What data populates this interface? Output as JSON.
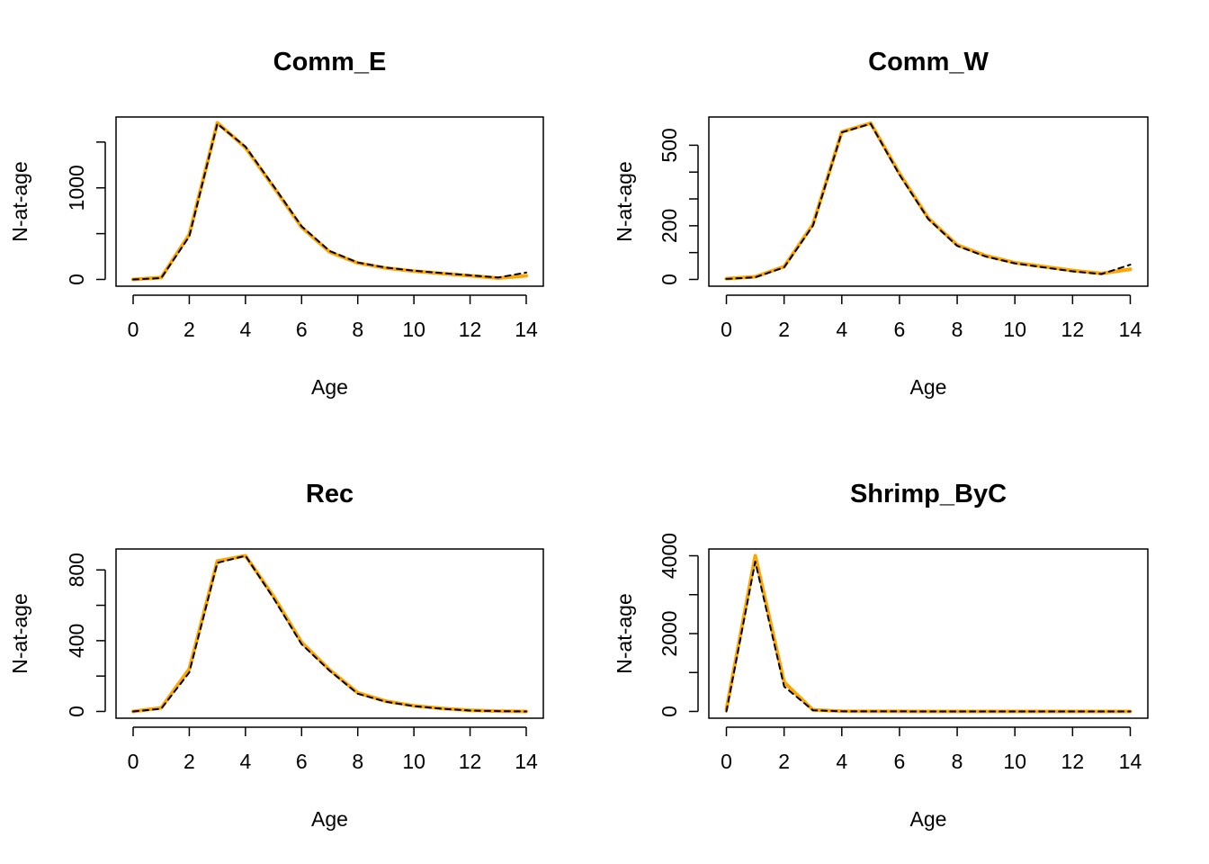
{
  "chart_data": [
    {
      "type": "line",
      "title": "Comm_E",
      "xlabel": "Age",
      "ylabel": "N-at-age",
      "x": [
        0,
        1,
        2,
        3,
        4,
        5,
        6,
        7,
        8,
        9,
        10,
        11,
        12,
        13,
        14
      ],
      "xlim": [
        0,
        14
      ],
      "ylim": [
        0,
        1700
      ],
      "xticks": [
        0,
        2,
        4,
        6,
        8,
        10,
        12,
        14
      ],
      "yticks": [
        0,
        500,
        1000,
        1500
      ],
      "ytick_labels": [
        "0",
        "",
        "1000",
        ""
      ],
      "series": [
        {
          "style": "dashed",
          "color": "#000000",
          "values": [
            0,
            15,
            470,
            1700,
            1450,
            1020,
            580,
            310,
            185,
            130,
            95,
            70,
            45,
            20,
            75
          ]
        },
        {
          "style": "solid",
          "color": "#FFA500",
          "values": [
            0,
            20,
            490,
            1710,
            1440,
            1010,
            570,
            300,
            180,
            125,
            90,
            65,
            40,
            15,
            40
          ]
        }
      ]
    },
    {
      "type": "line",
      "title": "Comm_W",
      "xlabel": "Age",
      "ylabel": "N-at-age",
      "x": [
        0,
        1,
        2,
        3,
        4,
        5,
        6,
        7,
        8,
        9,
        10,
        11,
        12,
        13,
        14
      ],
      "xlim": [
        0,
        14
      ],
      "ylim": [
        0,
        580
      ],
      "xticks": [
        0,
        2,
        4,
        6,
        8,
        10,
        12,
        14
      ],
      "yticks": [
        0,
        100,
        200,
        300,
        400,
        500
      ],
      "ytick_labels": [
        "0",
        "",
        "200",
        "",
        "",
        "500"
      ],
      "series": [
        {
          "style": "dashed",
          "color": "#000000",
          "values": [
            2,
            8,
            45,
            200,
            548,
            580,
            390,
            225,
            125,
            85,
            60,
            45,
            30,
            20,
            55
          ]
        },
        {
          "style": "solid",
          "color": "#FFA500",
          "values": [
            3,
            10,
            48,
            205,
            550,
            582,
            395,
            228,
            128,
            88,
            62,
            48,
            33,
            22,
            38
          ]
        }
      ]
    },
    {
      "type": "line",
      "title": "Rec",
      "xlabel": "Age",
      "ylabel": "N-at-age",
      "x": [
        0,
        1,
        2,
        3,
        4,
        5,
        6,
        7,
        8,
        9,
        10,
        11,
        12,
        13,
        14
      ],
      "xlim": [
        0,
        14
      ],
      "ylim": [
        0,
        880
      ],
      "xticks": [
        0,
        2,
        4,
        6,
        8,
        10,
        12,
        14
      ],
      "yticks": [
        0,
        200,
        400,
        600,
        800
      ],
      "ytick_labels": [
        "0",
        "",
        "400",
        "",
        "800"
      ],
      "series": [
        {
          "style": "dashed",
          "color": "#000000",
          "values": [
            0,
            15,
            220,
            840,
            880,
            640,
            380,
            230,
            100,
            55,
            30,
            15,
            5,
            2,
            0
          ]
        },
        {
          "style": "solid",
          "color": "#FFA500",
          "values": [
            0,
            20,
            240,
            850,
            880,
            650,
            390,
            235,
            105,
            58,
            32,
            17,
            6,
            2,
            0
          ]
        }
      ]
    },
    {
      "type": "line",
      "title": "Shrimp_ByC",
      "xlabel": "Age",
      "ylabel": "N-at-age",
      "x": [
        0,
        1,
        2,
        3,
        4,
        5,
        6,
        7,
        8,
        9,
        10,
        11,
        12,
        13,
        14
      ],
      "xlim": [
        0,
        14
      ],
      "ylim": [
        0,
        4000
      ],
      "xticks": [
        0,
        2,
        4,
        6,
        8,
        10,
        12,
        14
      ],
      "yticks": [
        0,
        1000,
        2000,
        3000,
        4000
      ],
      "ytick_labels": [
        "0",
        "",
        "2000",
        "",
        "4000"
      ],
      "series": [
        {
          "style": "dashed",
          "color": "#000000",
          "values": [
            0,
            3850,
            640,
            30,
            5,
            2,
            1,
            0,
            0,
            0,
            0,
            0,
            0,
            0,
            0
          ]
        },
        {
          "style": "solid",
          "color": "#FFA500",
          "values": [
            50,
            4000,
            750,
            40,
            5,
            2,
            1,
            0,
            0,
            0,
            0,
            0,
            0,
            0,
            0
          ]
        }
      ]
    }
  ]
}
